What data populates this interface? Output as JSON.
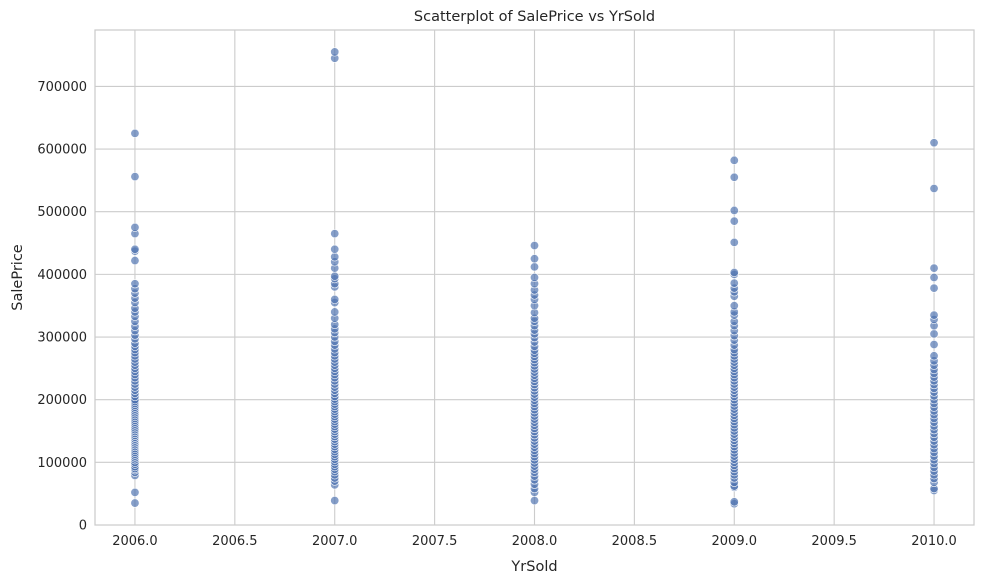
{
  "chart_data": {
    "type": "scatter",
    "title": "Scatterplot of SalePrice vs YrSold",
    "xlabel": "YrSold",
    "ylabel": "SalePrice",
    "xlim": [
      2005.8,
      2010.2
    ],
    "ylim": [
      0,
      790000
    ],
    "xticks": [
      2006.0,
      2006.5,
      2007.0,
      2007.5,
      2008.0,
      2008.5,
      2009.0,
      2009.5,
      2010.0
    ],
    "xtick_labels": [
      "2006.0",
      "2006.5",
      "2007.0",
      "2007.5",
      "2008.0",
      "2008.5",
      "2009.0",
      "2009.5",
      "2010.0"
    ],
    "yticks": [
      0,
      100000,
      200000,
      300000,
      400000,
      500000,
      600000,
      700000
    ],
    "ytick_labels": [
      "0",
      "100000",
      "200000",
      "300000",
      "400000",
      "500000",
      "600000",
      "700000"
    ],
    "grid": true,
    "point_color": "#4c72b0",
    "point_opacity": 0.68,
    "series": [
      {
        "x": 2006,
        "values": [
          35000,
          52000,
          79000,
          84000,
          88000,
          90000,
          93000,
          97000,
          100000,
          104000,
          107000,
          110000,
          113000,
          116000,
          119000,
          122000,
          125000,
          128000,
          131000,
          134000,
          137000,
          140000,
          143000,
          146000,
          149000,
          152000,
          155000,
          158000,
          161000,
          164000,
          167000,
          170000,
          173000,
          176000,
          179000,
          182000,
          185000,
          188000,
          191000,
          194000,
          197000,
          200000,
          205000,
          210000,
          215000,
          220000,
          225000,
          230000,
          235000,
          240000,
          245000,
          250000,
          255000,
          260000,
          265000,
          270000,
          275000,
          280000,
          285000,
          290000,
          297000,
          303000,
          310000,
          317000,
          325000,
          333000,
          340000,
          346000,
          355000,
          362000,
          370000,
          377000,
          385000,
          422000,
          437000,
          440000,
          465000,
          475000,
          556000,
          625000
        ]
      },
      {
        "x": 2007,
        "values": [
          39000,
          64000,
          70000,
          75000,
          80000,
          85000,
          89000,
          93000,
          97000,
          101000,
          105000,
          109000,
          113000,
          117000,
          121000,
          125000,
          129000,
          133000,
          137000,
          141000,
          145000,
          149000,
          153000,
          157000,
          161000,
          165000,
          169000,
          173000,
          177000,
          181000,
          185000,
          189000,
          193000,
          197000,
          201000,
          205000,
          210000,
          215000,
          220000,
          225000,
          230000,
          235000,
          240000,
          245000,
          250000,
          255000,
          260000,
          265000,
          270000,
          275000,
          281000,
          287000,
          293000,
          300000,
          307000,
          313000,
          320000,
          330000,
          340000,
          355000,
          360000,
          380000,
          385000,
          393000,
          397000,
          410000,
          420000,
          428000,
          440000,
          465000,
          745000,
          755000
        ]
      },
      {
        "x": 2008,
        "values": [
          39000,
          52000,
          58000,
          65000,
          72000,
          78000,
          84000,
          89000,
          94000,
          99000,
          104000,
          109000,
          114000,
          119000,
          124000,
          129000,
          134000,
          139000,
          144000,
          149000,
          154000,
          159000,
          164000,
          169000,
          174000,
          179000,
          184000,
          189000,
          194000,
          199000,
          204000,
          209000,
          214000,
          219000,
          224000,
          229000,
          234000,
          239000,
          244000,
          249000,
          254000,
          259000,
          264000,
          269000,
          274000,
          279000,
          285000,
          292000,
          299000,
          305000,
          311000,
          318000,
          325000,
          330000,
          339000,
          350000,
          360000,
          367000,
          375000,
          385000,
          395000,
          412000,
          425000,
          446000
        ]
      },
      {
        "x": 2009,
        "values": [
          34000,
          37000,
          60000,
          62000,
          68000,
          75000,
          80000,
          85000,
          90000,
          95000,
          100000,
          105000,
          110000,
          115000,
          120000,
          125000,
          130000,
          135000,
          140000,
          145000,
          150000,
          155000,
          160000,
          165000,
          170000,
          175000,
          180000,
          185000,
          190000,
          195000,
          200000,
          205000,
          210000,
          215000,
          220000,
          225000,
          230000,
          235000,
          240000,
          245000,
          250000,
          255000,
          260000,
          265000,
          270000,
          275000,
          280000,
          287000,
          295000,
          302000,
          310000,
          318000,
          325000,
          335000,
          340000,
          350000,
          365000,
          372000,
          378000,
          386000,
          400000,
          403000,
          451000,
          485000,
          502000,
          555000,
          582000
        ]
      },
      {
        "x": 2010,
        "values": [
          55000,
          58000,
          68000,
          74000,
          80000,
          86000,
          92000,
          98000,
          104000,
          110000,
          116000,
          122000,
          128000,
          134000,
          140000,
          146000,
          152000,
          158000,
          164000,
          170000,
          176000,
          182000,
          188000,
          194000,
          200000,
          206000,
          212000,
          218000,
          224000,
          230000,
          236000,
          242000,
          248000,
          255000,
          262000,
          270000,
          288000,
          305000,
          318000,
          328000,
          335000,
          378000,
          395000,
          410000,
          537000,
          610000
        ]
      }
    ]
  }
}
